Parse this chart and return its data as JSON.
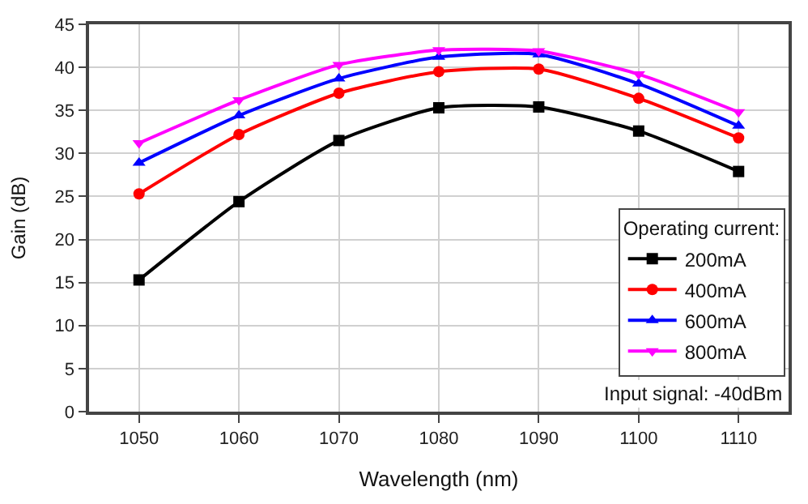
{
  "chart_data": {
    "type": "line",
    "xlabel": "Wavelength (nm)",
    "ylabel": "Gain (dB)",
    "legend_title": "Operating current:",
    "x": [
      1050,
      1060,
      1070,
      1080,
      1090,
      1100,
      1110
    ],
    "series": [
      {
        "name": "200mA",
        "color": "#000000",
        "marker": "square",
        "values": [
          15.3,
          24.4,
          31.5,
          35.3,
          35.4,
          32.6,
          27.9
        ]
      },
      {
        "name": "400mA",
        "color": "#ff0000",
        "marker": "circle",
        "values": [
          25.3,
          32.2,
          37.0,
          39.5,
          39.8,
          36.4,
          31.8
        ]
      },
      {
        "name": "600mA",
        "color": "#0000ff",
        "marker": "triangle",
        "values": [
          28.9,
          34.4,
          38.7,
          41.2,
          41.5,
          38.1,
          33.2
        ]
      },
      {
        "name": "800mA",
        "color": "#ff00ff",
        "marker": "triangle-down",
        "values": [
          31.2,
          36.2,
          40.3,
          42.0,
          41.9,
          39.2,
          34.8
        ]
      }
    ],
    "annotations": [
      "Input signal: -40dBm"
    ],
    "xlim": [
      1045,
      1115
    ],
    "xticks": [
      1050,
      1060,
      1070,
      1080,
      1090,
      1100,
      1110
    ],
    "ylim": [
      0,
      45
    ],
    "yticks": [
      0,
      5,
      10,
      15,
      20,
      25,
      30,
      35,
      40,
      45
    ],
    "grid": true,
    "legend": "bottom right",
    "line_style": "solid"
  }
}
